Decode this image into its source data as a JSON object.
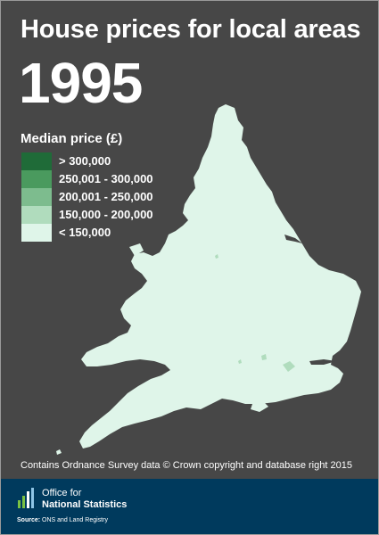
{
  "title": "House prices for local areas",
  "year": "1995",
  "legend": {
    "title": "Median price (£)",
    "items": [
      {
        "label": "> 300,000",
        "color": "#1f6b38"
      },
      {
        "label": "250,001 - 300,000",
        "color": "#4a9a5e"
      },
      {
        "label": "200,001 - 250,000",
        "color": "#7dbc8e"
      },
      {
        "label": "150,000 - 200,000",
        "color": "#b0dcbd"
      },
      {
        "label": "< 150,000",
        "color": "#dff5e9"
      }
    ]
  },
  "map": {
    "land_color": "#dff5e9",
    "higher_band_color": "#b0dcbd",
    "background_color": "#474747"
  },
  "attribution": "Contains Ordnance Survey data © Crown copyright and database right 2015",
  "footer": {
    "org_line1": "Office for",
    "org_line2": "National Statistics",
    "source_label": "Source:",
    "source_text": "ONS and Land Registry",
    "background_color": "#003a5d"
  }
}
